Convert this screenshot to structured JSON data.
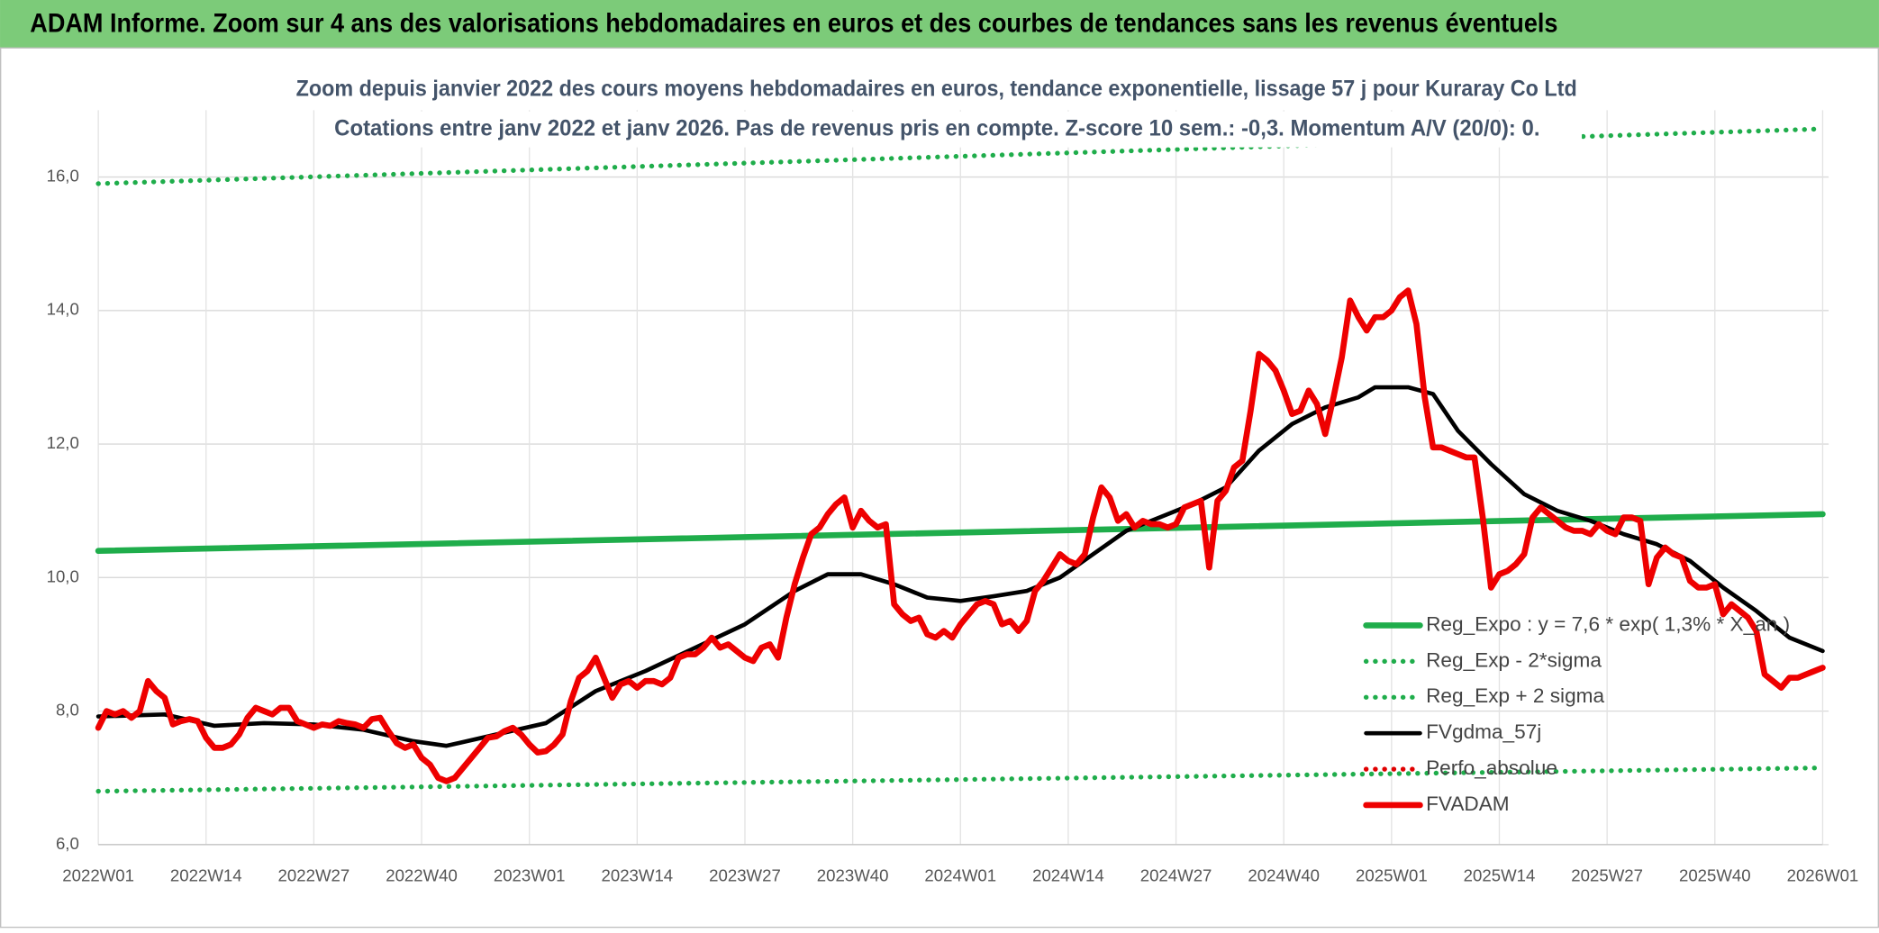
{
  "chart_data": {
    "type": "line",
    "header": "ADAM Informe. Zoom sur 4 ans des valorisations hebdomadaires en euros et des courbes de tendances sans les revenus éventuels",
    "title": "Zoom depuis janvier 2022 des cours moyens hebdomadaires en euros, tendance exponentielle, lissage 57 j pour Kuraray Co Ltd",
    "subtitle": "Cotations entre janv 2022 et janv 2026. Pas de revenus pris en compte. Z-score 10 sem.: -0,3. Momentum A/V (20/0): 0.",
    "xlim": [
      0,
      208
    ],
    "xticks": [
      {
        "value": 0,
        "label": "2022W01"
      },
      {
        "value": 13,
        "label": "2022W14"
      },
      {
        "value": 26,
        "label": "2022W27"
      },
      {
        "value": 39,
        "label": "2022W40"
      },
      {
        "value": 52,
        "label": "2023W01"
      },
      {
        "value": 65,
        "label": "2023W14"
      },
      {
        "value": 78,
        "label": "2023W27"
      },
      {
        "value": 91,
        "label": "2023W40"
      },
      {
        "value": 104,
        "label": "2024W01"
      },
      {
        "value": 117,
        "label": "2024W14"
      },
      {
        "value": 130,
        "label": "2024W27"
      },
      {
        "value": 143,
        "label": "2024W40"
      },
      {
        "value": 156,
        "label": "2025W01"
      },
      {
        "value": 169,
        "label": "2025W14"
      },
      {
        "value": 182,
        "label": "2025W27"
      },
      {
        "value": 195,
        "label": "2025W40"
      },
      {
        "value": 208,
        "label": "2026W01"
      }
    ],
    "ylim": [
      6,
      17
    ],
    "yticks": [
      {
        "value": 6,
        "label": "6,0"
      },
      {
        "value": 8,
        "label": "8,0"
      },
      {
        "value": 10,
        "label": "10,0"
      },
      {
        "value": 12,
        "label": "12,0"
      },
      {
        "value": 14,
        "label": "14,0"
      },
      {
        "value": 16,
        "label": "16,0"
      }
    ],
    "grid": true,
    "legend": "lower right",
    "series": [
      {
        "name": "Reg_Expo : y = 7,6 * exp( 1,3% *  X_an )",
        "color": "#1fad4b",
        "style": "solid",
        "width": 5,
        "x": [
          0,
          208
        ],
        "values": [
          10.4,
          10.95
        ]
      },
      {
        "name": "Reg_Exp - 2*sigma",
        "color": "#1fad4b",
        "style": "dotted",
        "width": 4,
        "x": [
          0,
          208
        ],
        "values": [
          6.8,
          7.15
        ]
      },
      {
        "name": "Reg_Exp + 2 sigma",
        "color": "#1fad4b",
        "style": "dotted",
        "width": 4,
        "x": [
          0,
          208
        ],
        "values": [
          15.9,
          16.72
        ]
      },
      {
        "name": "FVgdma_57j",
        "color": "#000000",
        "style": "solid",
        "width": 3.5,
        "x": [
          0,
          8,
          14,
          20,
          26,
          32,
          38,
          42,
          48,
          54,
          60,
          66,
          72,
          78,
          84,
          88,
          92,
          96,
          100,
          104,
          108,
          112,
          116,
          120,
          124,
          128,
          132,
          136,
          140,
          144,
          148,
          152,
          154,
          158,
          161,
          164,
          168,
          172,
          176,
          180,
          184,
          188,
          192,
          196,
          200,
          204,
          208
        ],
        "values": [
          7.92,
          7.95,
          7.78,
          7.82,
          7.8,
          7.72,
          7.55,
          7.48,
          7.65,
          7.82,
          8.3,
          8.6,
          8.95,
          9.3,
          9.8,
          10.05,
          10.05,
          9.9,
          9.7,
          9.65,
          9.72,
          9.8,
          10.0,
          10.35,
          10.7,
          10.9,
          11.1,
          11.35,
          11.9,
          12.3,
          12.55,
          12.7,
          12.85,
          12.85,
          12.75,
          12.2,
          11.7,
          11.25,
          11.0,
          10.85,
          10.65,
          10.5,
          10.25,
          9.85,
          9.5,
          9.1,
          8.9
        ]
      },
      {
        "name": "Perfo_absolue",
        "color": "#e00000",
        "style": "dotted",
        "width": 4,
        "x": [],
        "values": []
      },
      {
        "name": "FVADAM",
        "color": "#ee0000",
        "style": "solid",
        "width": 5,
        "x": [
          0,
          1,
          2,
          3,
          4,
          5,
          6,
          7,
          8,
          9,
          10,
          11,
          12,
          13,
          14,
          15,
          16,
          17,
          18,
          19,
          20,
          21,
          22,
          23,
          24,
          25,
          26,
          27,
          28,
          29,
          30,
          31,
          32,
          33,
          34,
          35,
          36,
          37,
          38,
          39,
          40,
          41,
          42,
          43,
          44,
          45,
          46,
          47,
          48,
          49,
          50,
          51,
          52,
          53,
          54,
          55,
          56,
          57,
          58,
          59,
          60,
          61,
          62,
          63,
          64,
          65,
          66,
          67,
          68,
          69,
          70,
          71,
          72,
          73,
          74,
          75,
          76,
          77,
          78,
          79,
          80,
          81,
          82,
          83,
          84,
          85,
          86,
          87,
          88,
          89,
          90,
          91,
          92,
          93,
          94,
          95,
          96,
          97,
          98,
          99,
          100,
          101,
          102,
          103,
          104,
          105,
          106,
          107,
          108,
          109,
          110,
          111,
          112,
          113,
          114,
          115,
          116,
          117,
          118,
          119,
          120,
          121,
          122,
          123,
          124,
          125,
          126,
          127,
          128,
          129,
          130,
          131,
          132,
          133,
          134,
          135,
          136,
          137,
          138,
          139,
          140,
          141,
          142,
          143,
          144,
          145,
          146,
          147,
          148,
          149,
          150,
          151,
          152,
          153,
          154,
          155,
          156,
          157,
          158,
          159,
          160,
          161,
          162,
          163,
          164,
          165,
          166,
          167,
          168,
          169,
          170,
          171,
          172,
          173,
          174,
          175,
          176,
          177,
          178,
          179,
          180,
          181,
          182,
          183,
          184,
          185,
          186,
          187,
          188,
          189,
          190,
          191,
          192,
          193,
          194,
          195,
          196,
          197,
          198,
          199,
          200,
          201,
          202,
          203,
          204,
          205,
          206,
          207,
          208
        ],
        "values": [
          7.75,
          8.0,
          7.95,
          8.0,
          7.9,
          8.0,
          8.45,
          8.3,
          8.2,
          7.8,
          7.85,
          7.88,
          7.85,
          7.6,
          7.45,
          7.45,
          7.5,
          7.65,
          7.9,
          8.05,
          8.0,
          7.95,
          8.05,
          8.05,
          7.85,
          7.8,
          7.75,
          7.8,
          7.78,
          7.85,
          7.82,
          7.8,
          7.75,
          7.88,
          7.9,
          7.7,
          7.52,
          7.45,
          7.5,
          7.3,
          7.2,
          7.0,
          6.95,
          7.0,
          7.15,
          7.3,
          7.45,
          7.6,
          7.62,
          7.7,
          7.75,
          7.65,
          7.5,
          7.38,
          7.4,
          7.5,
          7.65,
          8.15,
          8.5,
          8.6,
          8.8,
          8.5,
          8.2,
          8.4,
          8.45,
          8.35,
          8.45,
          8.45,
          8.4,
          8.5,
          8.8,
          8.85,
          8.85,
          8.95,
          9.1,
          8.95,
          9.0,
          8.9,
          8.8,
          8.75,
          8.95,
          9.0,
          8.8,
          9.4,
          9.9,
          10.3,
          10.65,
          10.75,
          10.95,
          11.1,
          11.2,
          10.75,
          11.0,
          10.85,
          10.75,
          10.8,
          9.6,
          9.45,
          9.35,
          9.4,
          9.15,
          9.1,
          9.2,
          9.1,
          9.3,
          9.45,
          9.6,
          9.65,
          9.6,
          9.3,
          9.35,
          9.2,
          9.35,
          9.8,
          9.95,
          10.15,
          10.35,
          10.25,
          10.2,
          10.35,
          10.9,
          11.35,
          11.2,
          10.85,
          10.95,
          10.75,
          10.85,
          10.8,
          10.8,
          10.75,
          10.8,
          11.05,
          11.1,
          11.15,
          10.15,
          11.15,
          11.3,
          11.65,
          11.75,
          12.5,
          13.35,
          13.25,
          13.1,
          12.8,
          12.45,
          12.5,
          12.8,
          12.6,
          12.15,
          12.7,
          13.3,
          14.15,
          13.9,
          13.7,
          13.9,
          13.9,
          14.0,
          14.2,
          14.3,
          13.8,
          12.7,
          11.95,
          11.95,
          11.9,
          11.85,
          11.8,
          11.8,
          10.9,
          9.85,
          10.05,
          10.1,
          10.2,
          10.35,
          10.9,
          11.05,
          10.95,
          10.85,
          10.75,
          10.7,
          10.7,
          10.65,
          10.8,
          10.7,
          10.65,
          10.9,
          10.9,
          10.85,
          9.9,
          10.3,
          10.45,
          10.35,
          10.3,
          9.95,
          9.85,
          9.85,
          9.9,
          9.45,
          9.6,
          9.5,
          9.4,
          9.2,
          8.55,
          8.45,
          8.35,
          8.5,
          8.5,
          8.55,
          8.6,
          8.65
        ]
      }
    ]
  }
}
